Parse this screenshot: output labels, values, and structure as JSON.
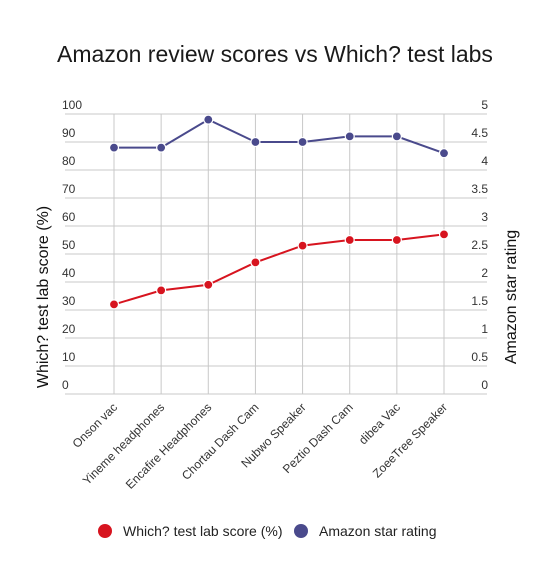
{
  "chart_data": {
    "type": "line",
    "title": "Amazon review scores vs Which? test labs",
    "categories": [
      "Onson vac",
      "Yineme headphones",
      "Encafire Headphones",
      "Chortau Dash Cam",
      "Nubwo Speaker",
      "Peztio Dash Cam",
      "dibea Vac",
      "ZoeeTree Speaker"
    ],
    "y_left": {
      "label": "Which? test lab score (%)",
      "range": [
        0,
        100
      ],
      "ticks": [
        "0",
        "10",
        "20",
        "30",
        "40",
        "50",
        "60",
        "70",
        "80",
        "90",
        "100"
      ]
    },
    "y_right": {
      "label": "Amazon star rating",
      "range": [
        0,
        5
      ],
      "ticks": [
        "0",
        "0.5",
        "1",
        "1.5",
        "2",
        "2.5",
        "3",
        "3.5",
        "4",
        "4.5",
        "5"
      ]
    },
    "grid": true,
    "legend_position": "bottom",
    "series": [
      {
        "name": "Which? test lab score (%)",
        "axis": "left",
        "color": "#d7141f",
        "values": [
          32,
          37,
          39,
          47,
          53,
          55,
          55,
          57
        ]
      },
      {
        "name": "Amazon star rating",
        "axis": "right",
        "color": "#4a4a8c",
        "values": [
          4.4,
          4.4,
          4.9,
          4.5,
          4.5,
          4.6,
          4.6,
          4.3
        ]
      }
    ]
  }
}
